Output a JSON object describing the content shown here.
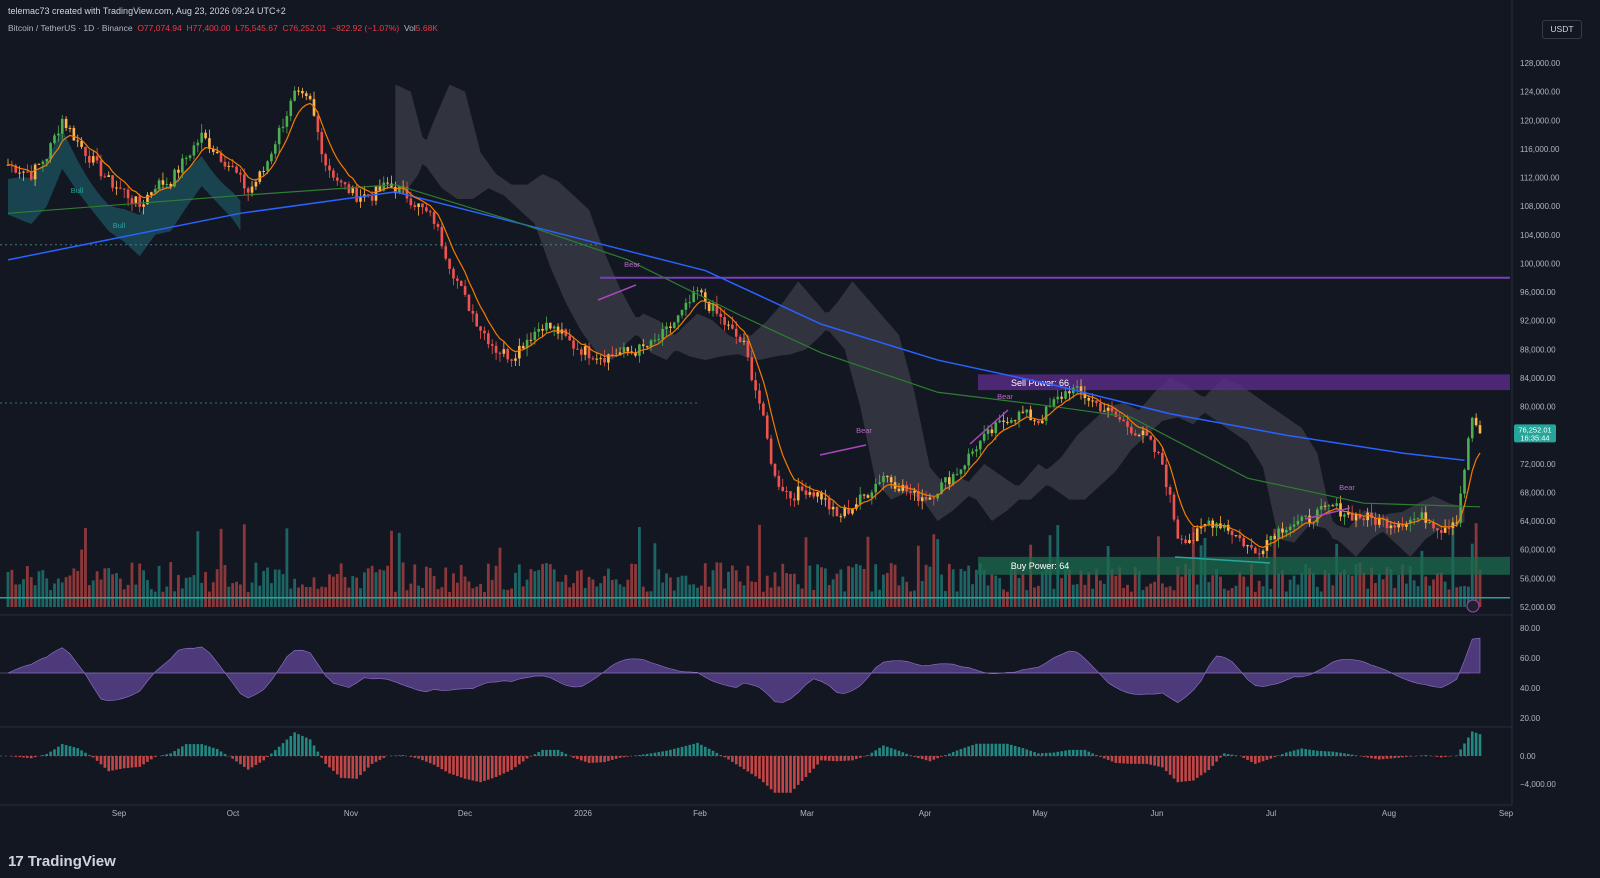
{
  "header": {
    "created_by": "telemac73 created with TradingView.com, Aug 23, 2026 09:24 UTC+2",
    "symbol": "Bitcoin / TetherUS · 1D · Binance",
    "open": "O77,074.94",
    "high": "H77,400.00",
    "low": "L75,545.67",
    "close": "C76,252.01",
    "change": "−822.92 (−1.07%)",
    "vol_label": "Vol",
    "vol_value": "5.68K",
    "currency": "USDT"
  },
  "brand": {
    "name": "TradingView",
    "logo_text": "17"
  },
  "colors": {
    "background": "#131722",
    "ema200": "#2962ff",
    "ema50": "#2e7d32",
    "purple": "#9c27b0",
    "bull": "#26a69a",
    "bear": "#ef5350"
  },
  "chart_data": [
    {
      "type": "line",
      "title": "Bitcoin / TetherUS · 1D · Binance",
      "x_tick_labels": [
        "Sep",
        "Oct",
        "Nov",
        "Dec",
        "2026",
        "Feb",
        "Mar",
        "Apr",
        "May",
        "Jun",
        "Jul",
        "Aug",
        "Sep"
      ],
      "y_tick_labels": [
        "128,000.00",
        "124,000.00",
        "120,000.00",
        "116,000.00",
        "112,000.00",
        "108,000.00",
        "104,000.00",
        "100,000.00",
        "96,000.00",
        "92,000.00",
        "88,000.00",
        "84,000.00",
        "80,000.00",
        "76,000.00",
        "72,000.00",
        "68,000.00",
        "64,000.00",
        "60,000.00",
        "56,000.00",
        "52,000.00"
      ],
      "ylim": [
        52000,
        130000
      ],
      "last_price": {
        "value": "76,252.01",
        "countdown": "16:35:44"
      },
      "series": [
        {
          "values": [
            [
              0,
              113800
            ],
            [
              6,
              112500
            ],
            [
              10,
              115000
            ],
            [
              14,
              120200
            ],
            [
              18,
              117000
            ],
            [
              22,
              114200
            ],
            [
              26,
              111500
            ],
            [
              30,
              110000
            ],
            [
              34,
              108000
            ],
            [
              38,
              111000
            ],
            [
              42,
              111500
            ],
            [
              46,
              114800
            ],
            [
              50,
              117800
            ],
            [
              54,
              115500
            ],
            [
              58,
              113200
            ],
            [
              62,
              110000
            ],
            [
              66,
              113000
            ],
            [
              70,
              118500
            ],
            [
              74,
              123500
            ],
            [
              78,
              122500
            ],
            [
              82,
              114000
            ],
            [
              86,
              111000
            ],
            [
              90,
              109500
            ],
            [
              94,
              109500
            ],
            [
              98,
              111000
            ],
            [
              102,
              110000
            ],
            [
              106,
              108000
            ],
            [
              110,
              106000
            ],
            [
              114,
              100000
            ],
            [
              118,
              95000
            ],
            [
              122,
              91000
            ],
            [
              126,
              88000
            ],
            [
              130,
              87000
            ],
            [
              134,
              89500
            ],
            [
              138,
              91500
            ],
            [
              142,
              90500
            ],
            [
              146,
              88500
            ],
            [
              150,
              87500
            ],
            [
              154,
              87000
            ],
            [
              158,
              87500
            ],
            [
              162,
              87800
            ],
            [
              166,
              88500
            ],
            [
              170,
              90500
            ],
            [
              174,
              93000
            ],
            [
              178,
              96000
            ],
            [
              182,
              93500
            ],
            [
              186,
              91000
            ],
            [
              190,
              88500
            ],
            [
              194,
              80500
            ],
            [
              198,
              70000
            ],
            [
              202,
              67500
            ],
            [
              206,
              68500
            ],
            [
              210,
              67500
            ],
            [
              214,
              64500
            ],
            [
              218,
              66000
            ],
            [
              222,
              68000
            ],
            [
              226,
              70500
            ],
            [
              230,
              69000
            ],
            [
              234,
              67500
            ],
            [
              238,
              67500
            ],
            [
              242,
              69500
            ],
            [
              246,
              71500
            ],
            [
              250,
              74500
            ],
            [
              254,
              76500
            ],
            [
              258,
              78500
            ],
            [
              262,
              79000
            ],
            [
              266,
              78000
            ],
            [
              270,
              80500
            ],
            [
              274,
              82500
            ],
            [
              278,
              81500
            ],
            [
              282,
              80000
            ],
            [
              286,
              78500
            ],
            [
              290,
              77000
            ],
            [
              294,
              75500
            ],
            [
              298,
              72000
            ],
            [
              302,
              62000
            ],
            [
              306,
              61500
            ],
            [
              310,
              64000
            ],
            [
              314,
              63500
            ],
            [
              318,
              61500
            ],
            [
              322,
              59500
            ],
            [
              326,
              62000
            ],
            [
              330,
              63500
            ],
            [
              334,
              63800
            ],
            [
              338,
              65000
            ],
            [
              342,
              66000
            ],
            [
              346,
              65000
            ],
            [
              350,
              64500
            ],
            [
              354,
              64000
            ],
            [
              358,
              63800
            ],
            [
              362,
              64200
            ],
            [
              366,
              64500
            ],
            [
              370,
              63000
            ],
            [
              374,
              64500
            ],
            [
              378,
              78500
            ],
            [
              380,
              76252
            ]
          ]
        },
        {
          "values": [
            [
              0,
              107000
            ],
            [
              60,
              109500
            ],
            [
              100,
              111000
            ],
            [
              130,
              106000
            ],
            [
              160,
              100500
            ],
            [
              190,
              92500
            ],
            [
              210,
              87500
            ],
            [
              240,
              82000
            ],
            [
              270,
              80000
            ],
            [
              290,
              78500
            ],
            [
              320,
              70000
            ],
            [
              350,
              66500
            ],
            [
              380,
              66000
            ]
          ]
        },
        {
          "values": [
            [
              0,
              100500
            ],
            [
              60,
              107000
            ],
            [
              100,
              110000
            ],
            [
              140,
              104500
            ],
            [
              180,
              99000
            ],
            [
              210,
              91500
            ],
            [
              240,
              86500
            ],
            [
              270,
              83000
            ],
            [
              300,
              79000
            ],
            [
              330,
              76000
            ],
            [
              360,
              73500
            ],
            [
              376,
              72500
            ]
          ]
        }
      ]
    },
    {
      "type": "area",
      "y_tick_labels": [
        "80.00",
        "60.00",
        "40.00",
        "20.00"
      ],
      "ylim": [
        15,
        85
      ],
      "midline": 50
    },
    {
      "type": "bar",
      "y_tick_labels": [
        "0.00",
        "−4,000.00"
      ],
      "ylim": [
        -6000,
        3000
      ]
    }
  ],
  "annotations": {
    "sell_power": "Sell Power: 66",
    "buy_power": "Buy Power: 64",
    "bear": "Bear",
    "bull": "Bull"
  },
  "icons": [
    "lightning-icon"
  ]
}
